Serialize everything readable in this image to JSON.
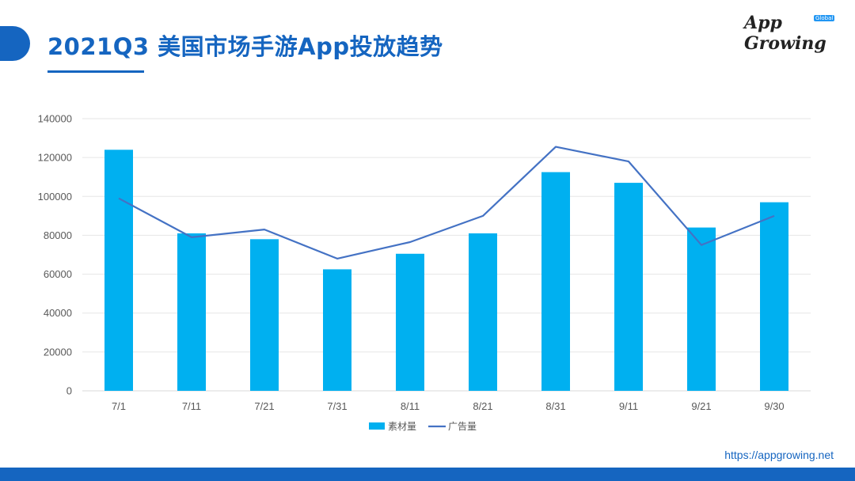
{
  "header": {
    "title": "2021Q3 美国市场手游App投放趋势",
    "logo_text": "App Growing",
    "logo_badge": "Global"
  },
  "footer": {
    "url": "https://appgrowing.net"
  },
  "colors": {
    "brand": "#1565c0",
    "bar": "#00b0f0",
    "line": "#4472c4"
  },
  "chart_data": {
    "type": "bar",
    "categories": [
      "7/1",
      "7/11",
      "7/21",
      "7/31",
      "8/11",
      "8/21",
      "8/31",
      "9/11",
      "9/21",
      "9/30"
    ],
    "series": [
      {
        "name": "素材量",
        "type": "bar",
        "values": [
          124000,
          81000,
          78000,
          62500,
          70500,
          81000,
          112500,
          107000,
          84000,
          97000
        ]
      },
      {
        "name": "广告量",
        "type": "line",
        "values": [
          99000,
          79000,
          83000,
          68000,
          76500,
          90000,
          125500,
          118000,
          75000,
          90000
        ]
      }
    ],
    "ylim": [
      0,
      140000
    ],
    "yticks": [
      "0",
      "20000",
      "40000",
      "60000",
      "80000",
      "100000",
      "120000",
      "140000"
    ],
    "grid": true,
    "legend": "bottom",
    "title": "",
    "xlabel": "",
    "ylabel": ""
  }
}
